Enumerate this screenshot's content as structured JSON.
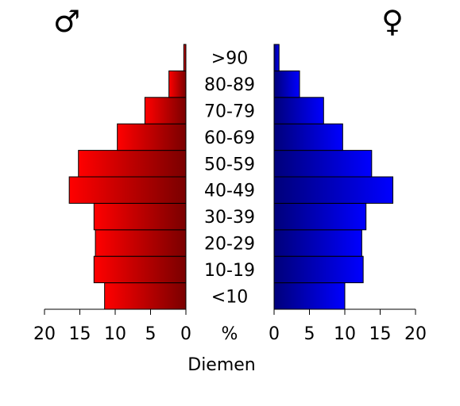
{
  "chart_data": {
    "type": "bar",
    "title": "",
    "xlabel": "Diemen",
    "center_label": "%",
    "male_symbol": "♂",
    "female_symbol": "♀",
    "categories": [
      "<10",
      "10-19",
      "20-29",
      "30-39",
      "40-49",
      "50-59",
      "60-69",
      "70-79",
      "80-89",
      ">90"
    ],
    "series": [
      {
        "name": "♂",
        "values": [
          11.5,
          13.0,
          12.8,
          13.0,
          16.5,
          15.2,
          9.7,
          5.8,
          2.4,
          0.3
        ]
      },
      {
        "name": "♀",
        "values": [
          10.0,
          12.6,
          12.4,
          13.0,
          16.8,
          13.8,
          9.7,
          7.0,
          3.6,
          0.7
        ]
      }
    ],
    "xlim": [
      0,
      20
    ],
    "ticks": [
      0,
      5,
      10,
      15,
      20
    ],
    "tick_labels": [
      "0",
      "5",
      "10",
      "15",
      "20"
    ],
    "grid": false,
    "colors": {
      "male_dark": "#7a0000",
      "male_light": "#ff0000",
      "female_dark": "#00007a",
      "female_light": "#0000ff"
    }
  }
}
